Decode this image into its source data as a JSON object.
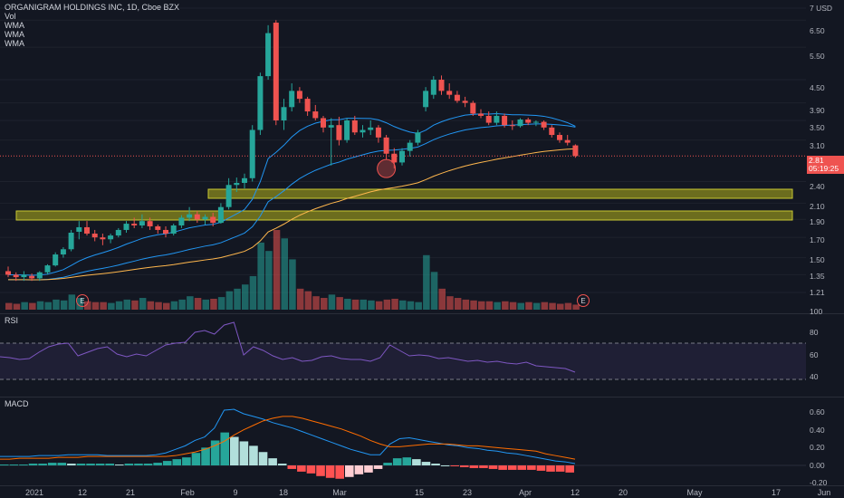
{
  "symbol": {
    "title": "ORGANIGRAM HOLDINGS INC, 1D, Cboe BZX",
    "indicators": [
      "Vol",
      "WMA",
      "WMA",
      "WMA"
    ]
  },
  "price_axis": {
    "currency": "USD",
    "ticks": [
      "7",
      "6.50",
      "5.50",
      "4.50",
      "3.90",
      "3.50",
      "3.10",
      "2.40",
      "2.10",
      "1.90",
      "1.70",
      "1.50",
      "1.35",
      "1.21"
    ]
  },
  "last_price": {
    "value": "2.81",
    "countdown": "05:19:25"
  },
  "rsi": {
    "label": "RSI",
    "ticks": [
      "100",
      "80",
      "60",
      "40"
    ],
    "values": [
      55,
      54,
      52,
      53,
      60,
      66,
      69,
      70,
      56,
      60,
      64,
      66,
      58,
      55,
      58,
      56,
      62,
      68,
      70,
      71,
      82,
      84,
      80,
      90,
      93,
      57,
      66,
      62,
      56,
      52,
      54,
      50,
      51,
      55,
      56,
      53,
      52,
      52,
      50,
      54,
      68,
      62,
      56,
      57,
      56,
      53,
      54,
      52,
      50,
      51,
      49,
      50,
      48,
      47,
      49,
      45,
      44,
      43,
      42,
      38
    ]
  },
  "macd": {
    "label": "MACD",
    "ticks": [
      "0.60",
      "0.40",
      "0.20",
      "0.00",
      "-0.20"
    ],
    "hist": [
      0.01,
      0.01,
      0.01,
      0.02,
      0.02,
      0.03,
      0.03,
      0.02,
      0.02,
      0.02,
      0.02,
      0.02,
      0.01,
      0.02,
      0.02,
      0.02,
      0.03,
      0.05,
      0.07,
      0.09,
      0.14,
      0.2,
      0.28,
      0.37,
      0.32,
      0.27,
      0.22,
      0.15,
      0.08,
      0.02,
      -0.04,
      -0.07,
      -0.09,
      -0.12,
      -0.14,
      -0.15,
      -0.13,
      -0.1,
      -0.08,
      -0.04,
      0.03,
      0.08,
      0.09,
      0.07,
      0.04,
      0.02,
      0.0,
      -0.01,
      -0.02,
      -0.03,
      -0.03,
      -0.04,
      -0.05,
      -0.05,
      -0.05,
      -0.05,
      -0.06,
      -0.07,
      -0.07,
      -0.08
    ],
    "macd_line": [
      0.1,
      0.1,
      0.1,
      0.1,
      0.11,
      0.11,
      0.11,
      0.12,
      0.12,
      0.12,
      0.12,
      0.11,
      0.11,
      0.11,
      0.11,
      0.11,
      0.12,
      0.14,
      0.18,
      0.22,
      0.28,
      0.32,
      0.42,
      0.62,
      0.63,
      0.58,
      0.55,
      0.52,
      0.48,
      0.45,
      0.42,
      0.38,
      0.34,
      0.3,
      0.26,
      0.22,
      0.18,
      0.15,
      0.12,
      0.12,
      0.24,
      0.3,
      0.31,
      0.29,
      0.27,
      0.25,
      0.23,
      0.22,
      0.2,
      0.19,
      0.17,
      0.16,
      0.14,
      0.13,
      0.11,
      0.09,
      0.07,
      0.05,
      0.04,
      0.02
    ],
    "signal_line": [
      0.07,
      0.07,
      0.08,
      0.08,
      0.08,
      0.08,
      0.09,
      0.09,
      0.09,
      0.1,
      0.1,
      0.1,
      0.1,
      0.1,
      0.1,
      0.1,
      0.1,
      0.1,
      0.11,
      0.13,
      0.15,
      0.18,
      0.22,
      0.27,
      0.34,
      0.4,
      0.45,
      0.5,
      0.53,
      0.55,
      0.55,
      0.53,
      0.5,
      0.47,
      0.44,
      0.41,
      0.37,
      0.33,
      0.28,
      0.24,
      0.21,
      0.21,
      0.22,
      0.23,
      0.24,
      0.24,
      0.24,
      0.23,
      0.22,
      0.22,
      0.21,
      0.2,
      0.19,
      0.18,
      0.17,
      0.16,
      0.13,
      0.11,
      0.09,
      0.07
    ]
  },
  "time_axis": {
    "labels": [
      "2021",
      "12",
      "21",
      "Feb",
      "9",
      "18",
      "Mar",
      "15",
      "23",
      "Apr",
      "12",
      "20",
      "May",
      "17",
      "Jun"
    ]
  },
  "events": [
    "E",
    "E"
  ],
  "colors": {
    "up": "#26a69a",
    "down": "#ef5350",
    "background": "#131722",
    "zone": "#8b8b1e",
    "rsi_band": "#7e57c2",
    "macd": "#2196f3",
    "signal": "#ff6d00",
    "wma_blue": "#2196f3",
    "wma_orange": "#ffb74d"
  },
  "chart_data": {
    "type": "candlestick",
    "title": "ORGANIGRAM HOLDINGS INC, 1D, Cboe BZX",
    "ylim": [
      1.15,
      7.0
    ],
    "y_scale": "log",
    "candles": [
      [
        1.38,
        1.42,
        1.33,
        1.35
      ],
      [
        1.35,
        1.37,
        1.3,
        1.33
      ],
      [
        1.33,
        1.38,
        1.3,
        1.35
      ],
      [
        1.34,
        1.36,
        1.3,
        1.32
      ],
      [
        1.32,
        1.38,
        1.3,
        1.37
      ],
      [
        1.37,
        1.44,
        1.35,
        1.43
      ],
      [
        1.43,
        1.55,
        1.42,
        1.53
      ],
      [
        1.53,
        1.6,
        1.5,
        1.58
      ],
      [
        1.58,
        1.78,
        1.56,
        1.75
      ],
      [
        1.76,
        1.88,
        1.68,
        1.81
      ],
      [
        1.81,
        1.88,
        1.72,
        1.74
      ],
      [
        1.74,
        1.78,
        1.66,
        1.7
      ],
      [
        1.7,
        1.74,
        1.62,
        1.68
      ],
      [
        1.68,
        1.74,
        1.64,
        1.72
      ],
      [
        1.72,
        1.8,
        1.7,
        1.78
      ],
      [
        1.78,
        1.88,
        1.75,
        1.85
      ],
      [
        1.85,
        1.92,
        1.8,
        1.83
      ],
      [
        1.83,
        1.96,
        1.8,
        1.88
      ],
      [
        1.88,
        1.92,
        1.78,
        1.82
      ],
      [
        1.82,
        1.84,
        1.74,
        1.78
      ],
      [
        1.78,
        1.82,
        1.7,
        1.74
      ],
      [
        1.74,
        1.85,
        1.72,
        1.83
      ],
      [
        1.83,
        1.95,
        1.8,
        1.92
      ],
      [
        1.92,
        2.05,
        1.88,
        1.96
      ],
      [
        1.96,
        2.0,
        1.86,
        1.9
      ],
      [
        1.9,
        1.96,
        1.84,
        1.93
      ],
      [
        1.93,
        1.98,
        1.82,
        1.86
      ],
      [
        1.86,
        2.1,
        1.85,
        2.05
      ],
      [
        2.05,
        2.45,
        2.02,
        2.35
      ],
      [
        2.35,
        2.46,
        2.25,
        2.38
      ],
      [
        2.38,
        2.52,
        2.3,
        2.45
      ],
      [
        2.45,
        3.4,
        2.4,
        3.3
      ],
      [
        3.3,
        4.7,
        3.2,
        4.6
      ],
      [
        4.6,
        6.3,
        4.5,
        6.0
      ],
      [
        6.4,
        6.5,
        3.4,
        3.5
      ],
      [
        3.5,
        4.0,
        3.3,
        3.8
      ],
      [
        3.8,
        4.4,
        3.7,
        4.2
      ],
      [
        4.2,
        4.3,
        3.9,
        4.0
      ],
      [
        4.0,
        4.05,
        3.6,
        3.7
      ],
      [
        3.7,
        3.85,
        3.5,
        3.55
      ],
      [
        3.55,
        3.6,
        3.25,
        3.35
      ],
      [
        3.35,
        3.55,
        2.65,
        3.4
      ],
      [
        3.4,
        3.58,
        3.0,
        3.1
      ],
      [
        3.1,
        3.55,
        3.05,
        3.5
      ],
      [
        3.5,
        3.6,
        3.2,
        3.25
      ],
      [
        3.25,
        3.4,
        3.15,
        3.3
      ],
      [
        3.3,
        3.5,
        3.2,
        3.35
      ],
      [
        3.35,
        3.4,
        3.05,
        3.15
      ],
      [
        3.15,
        3.2,
        2.75,
        2.85
      ],
      [
        2.85,
        2.95,
        2.6,
        2.7
      ],
      [
        2.7,
        2.95,
        2.65,
        2.9
      ],
      [
        2.9,
        3.1,
        2.8,
        3.05
      ],
      [
        3.05,
        3.3,
        3.0,
        3.25
      ],
      [
        3.8,
        4.3,
        3.7,
        4.2
      ],
      [
        4.1,
        4.6,
        4.0,
        4.5
      ],
      [
        4.5,
        4.62,
        4.1,
        4.2
      ],
      [
        4.2,
        4.4,
        4.0,
        4.1
      ],
      [
        4.1,
        4.2,
        3.9,
        3.95
      ],
      [
        3.95,
        4.05,
        3.8,
        3.9
      ],
      [
        3.9,
        3.95,
        3.6,
        3.65
      ],
      [
        3.65,
        3.75,
        3.55,
        3.6
      ],
      [
        3.6,
        3.7,
        3.4,
        3.45
      ],
      [
        3.45,
        3.7,
        3.4,
        3.6
      ],
      [
        3.6,
        3.65,
        3.35,
        3.4
      ],
      [
        3.4,
        3.5,
        3.3,
        3.38
      ],
      [
        3.38,
        3.55,
        3.35,
        3.52
      ],
      [
        3.52,
        3.56,
        3.4,
        3.45
      ],
      [
        3.45,
        3.5,
        3.38,
        3.47
      ],
      [
        3.47,
        3.5,
        3.3,
        3.35
      ],
      [
        3.35,
        3.4,
        3.15,
        3.2
      ],
      [
        3.2,
        3.25,
        3.05,
        3.1
      ],
      [
        3.1,
        3.2,
        3.0,
        3.05
      ],
      [
        3.0,
        3.02,
        2.78,
        2.81
      ]
    ],
    "volume": [
      8,
      7,
      9,
      8,
      10,
      9,
      12,
      11,
      18,
      14,
      10,
      9,
      9,
      8,
      10,
      12,
      11,
      14,
      10,
      9,
      8,
      10,
      12,
      16,
      14,
      12,
      13,
      15,
      22,
      25,
      30,
      40,
      80,
      70,
      95,
      85,
      60,
      25,
      22,
      16,
      14,
      18,
      15,
      13,
      12,
      12,
      11,
      10,
      12,
      13,
      11,
      10,
      9,
      65,
      45,
      25,
      16,
      14,
      12,
      11,
      10,
      10,
      9,
      10,
      9,
      8,
      9,
      8,
      9,
      8,
      7,
      8,
      6
    ]
  }
}
